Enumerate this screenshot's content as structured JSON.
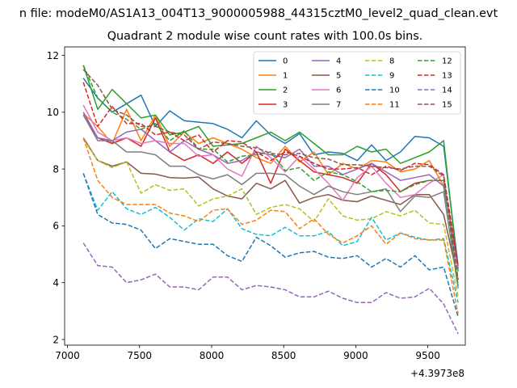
{
  "figure": {
    "suptitle": "n file: modeM0/AS1A13_004T13_9000005988_44315cztM0_level2_quad_clean.evt",
    "title": "Quadrant 2 module wise count rates with 100.0s bins.",
    "x_offset_label": "+4.3973e8"
  },
  "chart_data": {
    "type": "line",
    "title": "Quadrant 2 module wise count rates with 100.0s bins.",
    "xlabel": "",
    "ylabel": "",
    "x_offset": "+4.3973e8",
    "xlim": [
      6980,
      9760
    ],
    "ylim": [
      1.8,
      12.3
    ],
    "xticks": [
      7000,
      7500,
      8000,
      8500,
      9000,
      9500
    ],
    "yticks": [
      2,
      4,
      6,
      8,
      10,
      12
    ],
    "grid": false,
    "legend": "top-right, 4 columns",
    "x": [
      7110,
      7210,
      7310,
      7410,
      7510,
      7610,
      7710,
      7810,
      7910,
      8010,
      8110,
      8210,
      8310,
      8410,
      8510,
      8610,
      8710,
      8810,
      8910,
      9010,
      9110,
      9210,
      9310,
      9410,
      9510,
      9610,
      9710
    ],
    "series": [
      {
        "name": "0",
        "color": "#1f77b4",
        "dash": "solid",
        "values": [
          11.2,
          10.5,
          10.0,
          10.3,
          10.6,
          9.5,
          10.05,
          9.7,
          9.65,
          9.6,
          9.4,
          9.1,
          9.7,
          9.2,
          8.9,
          9.25,
          8.5,
          8.6,
          8.55,
          8.3,
          8.85,
          8.3,
          8.6,
          9.15,
          9.1,
          8.8,
          4.6
        ]
      },
      {
        "name": "1",
        "color": "#ff7f0e",
        "dash": "solid",
        "values": [
          9.95,
          9.5,
          8.9,
          10.1,
          9.0,
          9.9,
          8.8,
          9.3,
          8.9,
          9.1,
          8.9,
          8.7,
          8.4,
          8.2,
          8.8,
          8.25,
          8.6,
          7.8,
          8.2,
          8.0,
          8.3,
          8.25,
          7.9,
          8.0,
          8.3,
          7.4,
          4.6
        ]
      },
      {
        "name": "2",
        "color": "#2ca02c",
        "dash": "solid",
        "values": [
          11.65,
          10.1,
          10.8,
          10.3,
          9.8,
          9.9,
          9.2,
          9.3,
          9.5,
          8.8,
          8.85,
          8.9,
          9.1,
          9.3,
          9.0,
          9.3,
          8.9,
          8.5,
          8.5,
          8.8,
          8.6,
          8.7,
          8.2,
          8.4,
          8.6,
          9.0,
          4.4
        ]
      },
      {
        "name": "3",
        "color": "#d62728",
        "dash": "solid",
        "values": [
          9.9,
          9.1,
          8.9,
          9.1,
          8.8,
          9.8,
          8.6,
          8.3,
          8.5,
          8.2,
          8.6,
          8.2,
          8.6,
          7.5,
          8.7,
          8.3,
          7.9,
          7.8,
          7.7,
          7.5,
          8.2,
          7.8,
          7.2,
          7.5,
          7.6,
          7.6,
          4.5
        ]
      },
      {
        "name": "4",
        "color": "#9467bd",
        "dash": "solid",
        "values": [
          10.0,
          9.1,
          9.0,
          9.3,
          9.4,
          9.0,
          8.6,
          9.0,
          8.7,
          8.5,
          8.2,
          8.3,
          8.6,
          8.5,
          8.4,
          8.7,
          8.1,
          8.1,
          7.8,
          8.0,
          8.2,
          7.9,
          7.6,
          7.7,
          7.8,
          7.4,
          4.5
        ]
      },
      {
        "name": "5",
        "color": "#8c564b",
        "dash": "solid",
        "values": [
          9.1,
          8.3,
          8.1,
          8.25,
          7.85,
          7.82,
          7.7,
          7.68,
          7.72,
          7.3,
          7.05,
          6.95,
          7.5,
          7.3,
          7.6,
          6.8,
          7.0,
          7.1,
          6.9,
          6.85,
          7.05,
          6.9,
          6.75,
          7.1,
          7.1,
          6.4,
          4.1
        ]
      },
      {
        "name": "6",
        "color": "#e377c2",
        "dash": "solid",
        "values": [
          10.25,
          9.3,
          9.0,
          9.1,
          8.9,
          9.0,
          8.9,
          8.9,
          8.45,
          8.5,
          8.0,
          7.75,
          8.8,
          8.4,
          7.9,
          8.45,
          8.0,
          7.5,
          6.9,
          7.7,
          8.1,
          7.5,
          7.0,
          7.1,
          7.5,
          7.8,
          3.9
        ]
      },
      {
        "name": "7",
        "color": "#7f7f7f",
        "dash": "solid",
        "values": [
          9.9,
          9.0,
          9.0,
          8.6,
          8.6,
          8.5,
          8.1,
          8.1,
          7.8,
          7.65,
          7.8,
          7.45,
          7.85,
          7.85,
          7.8,
          7.4,
          7.1,
          7.4,
          7.2,
          7.1,
          7.2,
          7.3,
          6.5,
          7.05,
          7.0,
          7.2,
          3.8
        ]
      },
      {
        "name": "8",
        "color": "#bcbd22",
        "dash": "dashed",
        "values": [
          9.05,
          8.3,
          8.05,
          8.25,
          7.15,
          7.45,
          7.25,
          7.3,
          6.7,
          6.95,
          7.05,
          7.3,
          6.4,
          6.65,
          6.75,
          6.6,
          6.15,
          6.95,
          6.35,
          6.2,
          6.25,
          6.5,
          6.35,
          6.55,
          6.1,
          6.05,
          3.5
        ]
      },
      {
        "name": "9",
        "color": "#17becf",
        "dash": "dashed",
        "values": [
          7.85,
          6.55,
          7.2,
          6.6,
          6.4,
          6.65,
          6.3,
          5.85,
          6.25,
          6.15,
          6.6,
          5.9,
          5.7,
          5.65,
          5.95,
          5.65,
          5.65,
          5.8,
          5.3,
          5.45,
          6.3,
          5.5,
          5.75,
          5.6,
          5.5,
          5.55,
          3.3
        ]
      },
      {
        "name": "10",
        "color": "#1f77b4",
        "dash": "dashed",
        "values": [
          7.85,
          6.4,
          6.1,
          6.05,
          5.85,
          5.2,
          5.55,
          5.45,
          5.35,
          5.35,
          4.95,
          4.75,
          5.6,
          5.3,
          4.9,
          5.05,
          5.1,
          4.9,
          4.85,
          4.95,
          4.55,
          4.85,
          4.55,
          4.95,
          4.45,
          4.55,
          2.8
        ]
      },
      {
        "name": "11",
        "color": "#ff7f0e",
        "dash": "dashed",
        "values": [
          9.1,
          7.6,
          7.0,
          6.75,
          6.75,
          6.75,
          6.45,
          6.35,
          6.15,
          6.55,
          6.6,
          6.05,
          6.2,
          6.55,
          6.5,
          5.9,
          6.25,
          5.7,
          5.4,
          5.65,
          6.0,
          5.35,
          5.75,
          5.55,
          5.5,
          5.5,
          2.9
        ]
      },
      {
        "name": "12",
        "color": "#2ca02c",
        "dash": "dashed",
        "values": [
          11.65,
          10.5,
          10.0,
          9.75,
          9.4,
          9.6,
          9.0,
          9.35,
          8.7,
          8.7,
          8.25,
          8.45,
          8.5,
          8.6,
          7.95,
          8.05,
          7.6,
          7.9,
          7.8,
          7.55,
          7.2,
          7.25,
          7.2,
          7.45,
          7.6,
          7.6,
          3.9
        ]
      },
      {
        "name": "13",
        "color": "#d62728",
        "dash": "dashed",
        "values": [
          11.05,
          9.5,
          10.2,
          9.6,
          9.6,
          9.2,
          9.3,
          9.0,
          9.2,
          8.6,
          9.0,
          8.95,
          8.6,
          8.3,
          8.6,
          8.45,
          8.2,
          8.0,
          8.0,
          8.05,
          7.8,
          8.1,
          7.95,
          8.2,
          8.15,
          7.8,
          4.6
        ]
      },
      {
        "name": "14",
        "color": "#9467bd",
        "dash": "dashed",
        "values": [
          5.4,
          4.6,
          4.55,
          4.0,
          4.1,
          4.3,
          3.85,
          3.85,
          3.75,
          4.2,
          4.2,
          3.75,
          3.9,
          3.85,
          3.75,
          3.5,
          3.5,
          3.7,
          3.45,
          3.3,
          3.3,
          3.65,
          3.45,
          3.5,
          3.8,
          3.25,
          2.2
        ]
      },
      {
        "name": "15",
        "color": "#8c564b",
        "dash": "dashed",
        "values": [
          11.5,
          10.95,
          10.1,
          9.9,
          9.5,
          9.5,
          9.3,
          9.2,
          8.7,
          8.95,
          8.9,
          8.8,
          8.75,
          8.55,
          8.5,
          8.55,
          8.4,
          8.35,
          8.15,
          8.15,
          8.1,
          8.05,
          8.0,
          8.1,
          8.1,
          7.75,
          4.1
        ]
      }
    ]
  }
}
